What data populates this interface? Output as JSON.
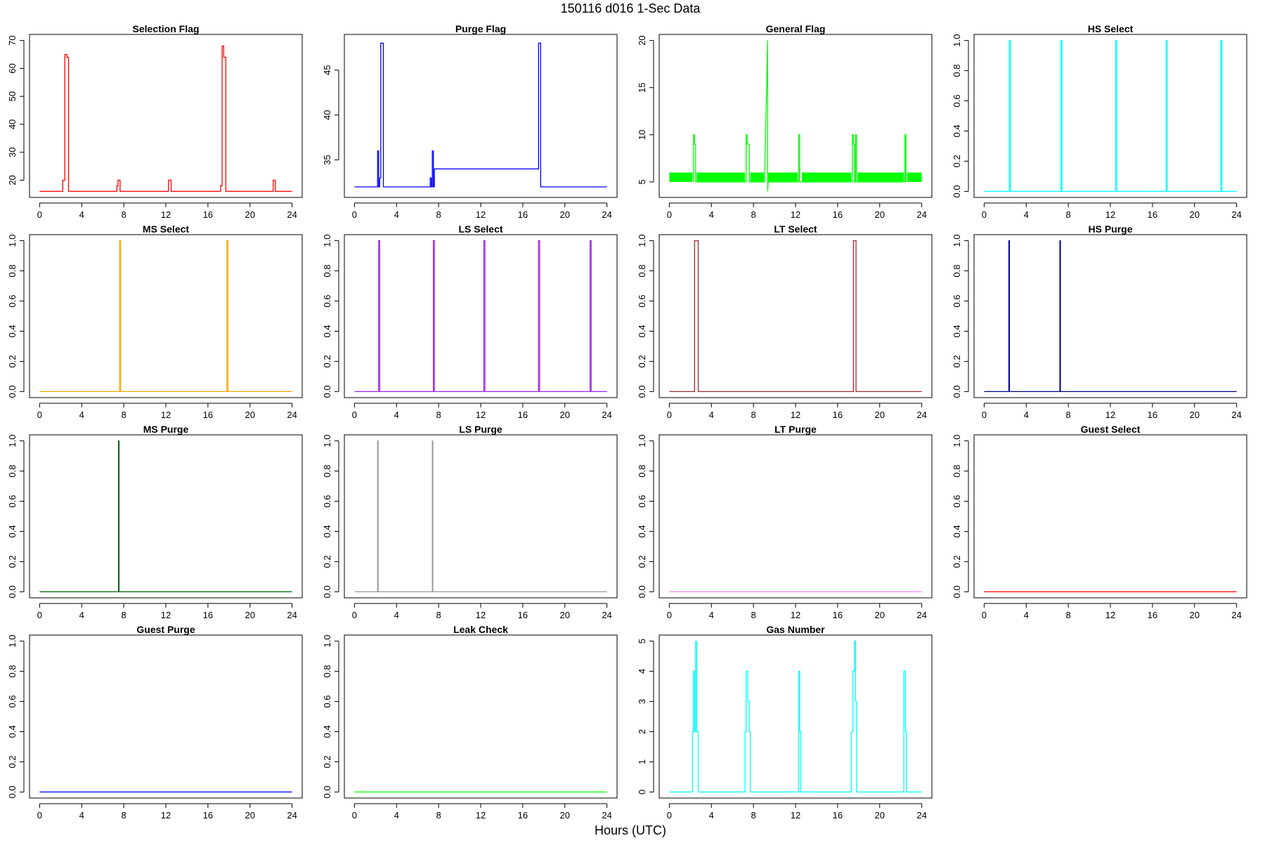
{
  "figure": {
    "title": "150116   d016   1-Sec Data",
    "xlabel": "Hours (UTC)"
  },
  "chart_data": [
    {
      "type": "line",
      "title": "Selection Flag",
      "color": "#ff0000",
      "xlim": [
        0,
        24
      ],
      "ylim": [
        16,
        70
      ],
      "xticks": [
        0,
        4,
        8,
        12,
        16,
        20,
        24
      ],
      "yticks": [
        20,
        30,
        40,
        50,
        60,
        70
      ],
      "y_tick_orientation": "vertical",
      "series": [
        {
          "x": [
            0,
            2.2,
            2.2,
            2.4,
            2.4,
            2.6,
            2.6,
            2.75,
            2.75,
            7.35,
            7.35,
            7.45,
            7.45,
            7.65,
            7.65,
            12.25,
            12.25,
            12.5,
            12.5,
            17.2,
            17.2,
            17.35,
            17.35,
            17.5,
            17.5,
            17.7,
            17.7,
            22.2,
            22.2,
            22.4,
            22.4,
            24
          ],
          "y": [
            16,
            16,
            20,
            20,
            65,
            65,
            64,
            64,
            16,
            16,
            18,
            18,
            20,
            20,
            16,
            16,
            20,
            20,
            16,
            16,
            18,
            18,
            68,
            68,
            64,
            64,
            16,
            16,
            20,
            20,
            16,
            16
          ]
        }
      ]
    },
    {
      "type": "line",
      "title": "Purge Flag",
      "color": "#0000ff",
      "xlim": [
        0,
        24
      ],
      "ylim": [
        31.5,
        48.3
      ],
      "xticks": [
        0,
        4,
        8,
        12,
        16,
        20,
        24
      ],
      "yticks": [
        35,
        40,
        45
      ],
      "y_tick_orientation": "vertical",
      "series": [
        {
          "x": [
            0,
            2.2,
            2.2,
            2.3,
            2.3,
            2.4,
            2.4,
            2.5,
            2.5,
            2.75,
            2.75,
            7.2,
            7.2,
            7.3,
            7.3,
            7.4,
            7.4,
            7.5,
            7.5,
            7.6,
            7.6,
            17.5,
            17.5,
            17.7,
            17.7,
            24
          ],
          "y": [
            32,
            32,
            36,
            36,
            32,
            32,
            33,
            33,
            48,
            48,
            32,
            32,
            33,
            33,
            32,
            32,
            36,
            36,
            32,
            32,
            34,
            34,
            48,
            48,
            32,
            32
          ]
        }
      ]
    },
    {
      "type": "line",
      "title": "General Flag",
      "color": "#00ff00",
      "xlim": [
        0,
        24
      ],
      "ylim": [
        4,
        20
      ],
      "xticks": [
        0,
        4,
        8,
        12,
        16,
        20,
        24
      ],
      "yticks": [
        5,
        10,
        15,
        20
      ],
      "y_tick_orientation": "vertical",
      "band": {
        "y_low": 5,
        "y_high": 6,
        "segments": [
          [
            0,
            2.2
          ],
          [
            2.6,
            7.2
          ],
          [
            7.7,
            9.0
          ],
          [
            9.4,
            12.2
          ],
          [
            12.6,
            17.3
          ],
          [
            17.9,
            22.3
          ],
          [
            22.6,
            24
          ]
        ]
      },
      "series": [
        {
          "x": [
            2.3,
            2.3,
            2.4,
            2.4,
            2.5,
            2.5,
            7.3,
            7.3,
            7.4,
            7.4,
            7.6,
            7.6,
            9.05,
            9.35,
            9.35,
            9.4,
            12.3,
            12.3,
            12.4,
            12.4,
            17.4,
            17.4,
            17.5,
            17.5,
            17.6,
            17.6,
            17.7,
            17.7,
            17.8,
            17.8,
            22.4,
            22.4,
            22.5,
            22.5
          ],
          "y": [
            5,
            10,
            10,
            9,
            9,
            5,
            5,
            10,
            10,
            9,
            9,
            5,
            5,
            20,
            4,
            5,
            5,
            10,
            10,
            5,
            5,
            10,
            10,
            9,
            9,
            5,
            5,
            10,
            10,
            5,
            5,
            10,
            10,
            5
          ]
        }
      ]
    },
    {
      "type": "line",
      "title": "HS Select",
      "color": "#00ffff",
      "xlim": [
        0,
        24
      ],
      "ylim": [
        0,
        1
      ],
      "xticks": [
        0,
        4,
        8,
        12,
        16,
        20,
        24
      ],
      "yticks": [
        0.0,
        0.2,
        0.4,
        0.6,
        0.8,
        1.0
      ],
      "y_tick_orientation": "vertical",
      "series": [
        {
          "x": [
            0,
            2.4,
            2.4,
            2.5,
            2.5,
            7.3,
            7.3,
            7.4,
            7.4,
            12.5,
            12.5,
            12.6,
            12.6,
            17.3,
            17.3,
            17.4,
            17.4,
            22.5,
            22.5,
            22.6,
            22.6,
            24
          ],
          "y": [
            0,
            0,
            1,
            1,
            0,
            0,
            1,
            1,
            0,
            0,
            1,
            1,
            0,
            0,
            1,
            1,
            0,
            0,
            1,
            1,
            0,
            0
          ]
        }
      ]
    },
    {
      "type": "line",
      "title": "MS Select",
      "color": "#ffa500",
      "xlim": [
        0,
        24
      ],
      "ylim": [
        0,
        1
      ],
      "xticks": [
        0,
        4,
        8,
        12,
        16,
        20,
        24
      ],
      "yticks": [
        0.0,
        0.2,
        0.4,
        0.6,
        0.8,
        1.0
      ],
      "y_tick_orientation": "vertical",
      "series": [
        {
          "x": [
            0,
            7.6,
            7.6,
            7.7,
            7.7,
            17.8,
            17.8,
            17.9,
            17.9,
            24
          ],
          "y": [
            0,
            0,
            1,
            1,
            0,
            0,
            1,
            1,
            0,
            0
          ]
        }
      ]
    },
    {
      "type": "line",
      "title": "LS Select",
      "color": "#a020f0",
      "xlim": [
        0,
        24
      ],
      "ylim": [
        0,
        1
      ],
      "xticks": [
        0,
        4,
        8,
        12,
        16,
        20,
        24
      ],
      "yticks": [
        0.0,
        0.2,
        0.4,
        0.6,
        0.8,
        1.0
      ],
      "y_tick_orientation": "vertical",
      "series": [
        {
          "x": [
            0,
            2.3,
            2.3,
            2.4,
            2.4,
            7.5,
            7.5,
            7.6,
            7.6,
            12.3,
            12.3,
            12.4,
            12.4,
            17.5,
            17.5,
            17.6,
            17.6,
            22.4,
            22.4,
            22.5,
            22.5,
            24
          ],
          "y": [
            0,
            0,
            1,
            1,
            0,
            0,
            1,
            1,
            0,
            0,
            1,
            1,
            0,
            0,
            1,
            1,
            0,
            0,
            1,
            1,
            0,
            0
          ]
        }
      ]
    },
    {
      "type": "line",
      "title": "LT Select",
      "color": "#a52a2a",
      "xlim": [
        0,
        24
      ],
      "ylim": [
        0,
        1
      ],
      "xticks": [
        0,
        4,
        8,
        12,
        16,
        20,
        24
      ],
      "yticks": [
        0.0,
        0.2,
        0.4,
        0.6,
        0.8,
        1.0
      ],
      "y_tick_orientation": "vertical",
      "series": [
        {
          "x": [
            0,
            2.4,
            2.4,
            2.75,
            2.75,
            17.5,
            17.5,
            17.75,
            17.75,
            24
          ],
          "y": [
            0,
            0,
            1,
            1,
            0,
            0,
            1,
            1,
            0,
            0
          ]
        }
      ]
    },
    {
      "type": "line",
      "title": "HS Purge",
      "color": "#00008b",
      "xlim": [
        0,
        24
      ],
      "ylim": [
        0,
        1
      ],
      "xticks": [
        0,
        4,
        8,
        12,
        16,
        20,
        24
      ],
      "yticks": [
        0.0,
        0.2,
        0.4,
        0.6,
        0.8,
        1.0
      ],
      "y_tick_orientation": "vertical",
      "series": [
        {
          "x": [
            0,
            2.35,
            2.35,
            2.4,
            2.4,
            7.2,
            7.2,
            7.25,
            7.25,
            24
          ],
          "y": [
            0,
            0,
            1,
            1,
            0,
            0,
            1,
            1,
            0,
            0
          ]
        }
      ]
    },
    {
      "type": "line",
      "title": "MS Purge",
      "color": "#006400",
      "xlim": [
        0,
        24
      ],
      "ylim": [
        0,
        1
      ],
      "xticks": [
        0,
        4,
        8,
        12,
        16,
        20,
        24
      ],
      "yticks": [
        0.0,
        0.2,
        0.4,
        0.6,
        0.8,
        1.0
      ],
      "y_tick_orientation": "vertical",
      "series": [
        {
          "x": [
            0,
            7.5,
            7.5,
            7.55,
            7.55,
            24
          ],
          "y": [
            0,
            0,
            1,
            1,
            0,
            0
          ]
        }
      ]
    },
    {
      "type": "line",
      "title": "LS Purge",
      "color": "#999999",
      "xlim": [
        0,
        24
      ],
      "ylim": [
        0,
        1
      ],
      "xticks": [
        0,
        4,
        8,
        12,
        16,
        20,
        24
      ],
      "yticks": [
        0.0,
        0.2,
        0.4,
        0.6,
        0.8,
        1.0
      ],
      "y_tick_orientation": "vertical",
      "series": [
        {
          "x": [
            0,
            2.2,
            2.2,
            2.25,
            2.25,
            7.4,
            7.4,
            7.45,
            7.45,
            24
          ],
          "y": [
            0,
            0,
            1,
            1,
            0,
            0,
            1,
            1,
            0,
            0
          ]
        }
      ]
    },
    {
      "type": "line",
      "title": "LT Purge",
      "color": "#ee82ee",
      "xlim": [
        0,
        24
      ],
      "ylim": [
        0,
        1
      ],
      "xticks": [
        0,
        4,
        8,
        12,
        16,
        20,
        24
      ],
      "yticks": [
        0.0,
        0.2,
        0.4,
        0.6,
        0.8,
        1.0
      ],
      "y_tick_orientation": "vertical",
      "series": [
        {
          "x": [
            0,
            24
          ],
          "y": [
            0,
            0
          ]
        }
      ]
    },
    {
      "type": "line",
      "title": "Guest Select",
      "color": "#ff0000",
      "xlim": [
        0,
        24
      ],
      "ylim": [
        0,
        1
      ],
      "xticks": [
        0,
        4,
        8,
        12,
        16,
        20,
        24
      ],
      "yticks": [
        0.0,
        0.2,
        0.4,
        0.6,
        0.8,
        1.0
      ],
      "y_tick_orientation": "vertical",
      "series": [
        {
          "x": [
            0,
            24
          ],
          "y": [
            0,
            0
          ]
        }
      ]
    },
    {
      "type": "line",
      "title": "Guest Purge",
      "color": "#0000ff",
      "xlim": [
        0,
        24
      ],
      "ylim": [
        0,
        1
      ],
      "xticks": [
        0,
        4,
        8,
        12,
        16,
        20,
        24
      ],
      "yticks": [
        0.0,
        0.2,
        0.4,
        0.6,
        0.8,
        1.0
      ],
      "y_tick_orientation": "vertical",
      "series": [
        {
          "x": [
            0,
            24
          ],
          "y": [
            0,
            0
          ]
        }
      ]
    },
    {
      "type": "line",
      "title": "Leak Check",
      "color": "#00ff00",
      "xlim": [
        0,
        24
      ],
      "ylim": [
        0,
        1
      ],
      "xticks": [
        0,
        4,
        8,
        12,
        16,
        20,
        24
      ],
      "yticks": [
        0.0,
        0.2,
        0.4,
        0.6,
        0.8,
        1.0
      ],
      "y_tick_orientation": "vertical",
      "series": [
        {
          "x": [
            0,
            24
          ],
          "y": [
            0,
            0
          ]
        }
      ]
    },
    {
      "type": "line",
      "title": "Gas Number",
      "color": "#00ffff",
      "xlim": [
        0,
        24
      ],
      "ylim": [
        0,
        5
      ],
      "xticks": [
        0,
        4,
        8,
        12,
        16,
        20,
        24
      ],
      "yticks": [
        0,
        1,
        2,
        3,
        4,
        5
      ],
      "y_tick_orientation": "vertical",
      "series": [
        {
          "x": [
            0,
            2.2,
            2.2,
            2.3,
            2.3,
            2.4,
            2.4,
            2.5,
            2.5,
            2.6,
            2.6,
            2.75,
            2.75,
            7.2,
            7.2,
            7.3,
            7.3,
            7.45,
            7.45,
            7.6,
            7.6,
            7.7,
            7.7,
            12.3,
            12.3,
            12.4,
            12.4,
            12.5,
            12.5,
            17.3,
            17.3,
            17.45,
            17.45,
            17.6,
            17.6,
            17.7,
            17.7,
            17.8,
            17.8,
            22.3,
            22.3,
            22.45,
            22.45,
            22.55,
            22.55,
            24
          ],
          "y": [
            0,
            0,
            2,
            2,
            4,
            4,
            2,
            2,
            5,
            5,
            2,
            2,
            0,
            0,
            2,
            2,
            4,
            4,
            3,
            3,
            2,
            2,
            0,
            0,
            4,
            4,
            2,
            2,
            0,
            0,
            2,
            2,
            4,
            4,
            5,
            5,
            3,
            3,
            0,
            0,
            4,
            4,
            2,
            2,
            0,
            0
          ]
        }
      ]
    }
  ]
}
